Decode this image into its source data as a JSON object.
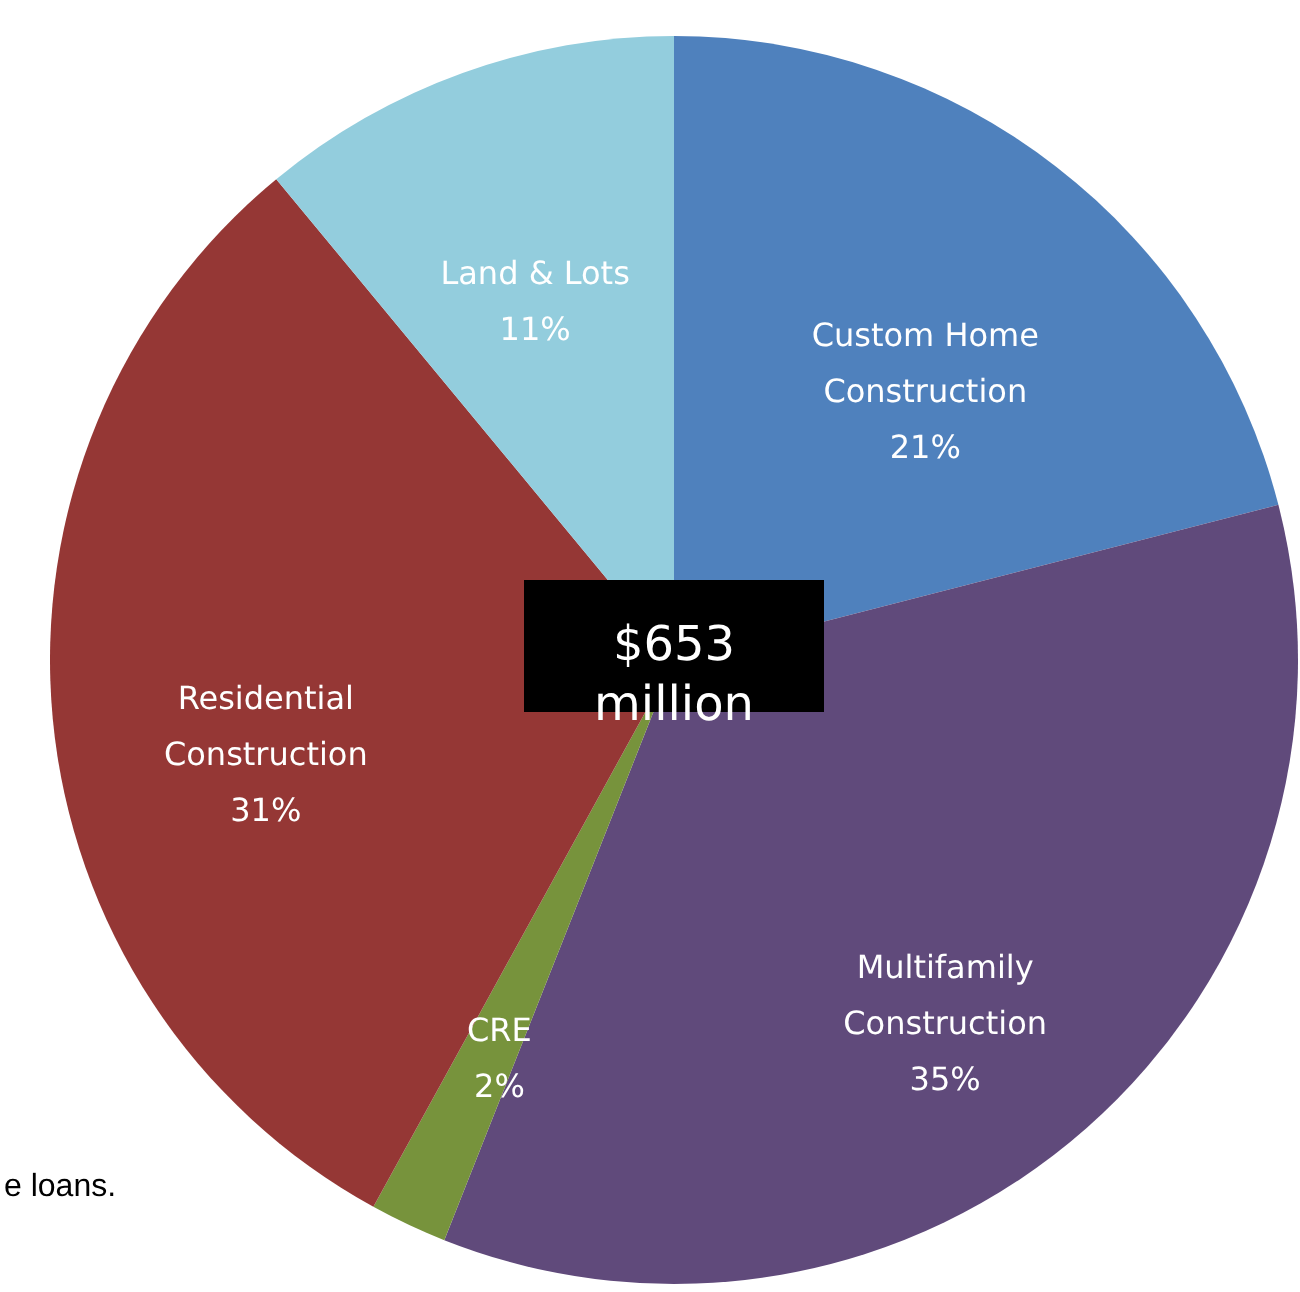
{
  "chart_data": {
    "type": "pie",
    "categories": [
      "Custom Home Construction",
      "Multifamily Construction",
      "CRE",
      "Residential Construction",
      "Land & Lots"
    ],
    "values": [
      21,
      35,
      2,
      31,
      11
    ],
    "value_labels": [
      "21%",
      "35%",
      "2%",
      "31%",
      "11%"
    ],
    "colors": [
      "#4f81bd",
      "#604a7b",
      "#77933c",
      "#953735",
      "#93cddd"
    ],
    "annotations": [
      "$653 million",
      "e loans."
    ]
  }
}
